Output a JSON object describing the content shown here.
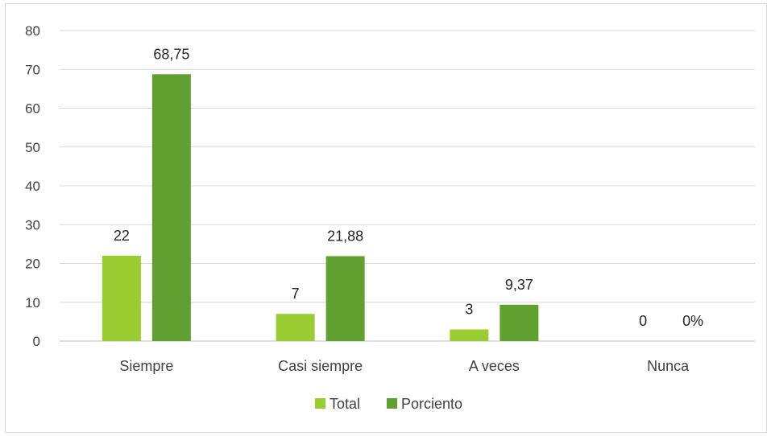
{
  "chart_data": {
    "type": "bar",
    "title": "",
    "xlabel": "",
    "ylabel": "",
    "categories": [
      "Siempre",
      "Casi siempre",
      "A veces",
      "Nunca"
    ],
    "series": [
      {
        "name": "Total",
        "color": "#9acd32",
        "values": [
          22,
          7,
          3,
          0
        ],
        "labels": [
          "22",
          "7",
          "3",
          "0"
        ]
      },
      {
        "name": "Porciento",
        "color": "#5fa030",
        "values": [
          68.75,
          21.88,
          9.37,
          0
        ],
        "labels": [
          "68,75",
          "21,88",
          "9,37",
          "0%"
        ]
      }
    ],
    "ylim": [
      0,
      80
    ],
    "yticks": [
      0,
      10,
      20,
      30,
      40,
      50,
      60,
      70,
      80
    ],
    "grid": true,
    "legend": "bottom"
  }
}
